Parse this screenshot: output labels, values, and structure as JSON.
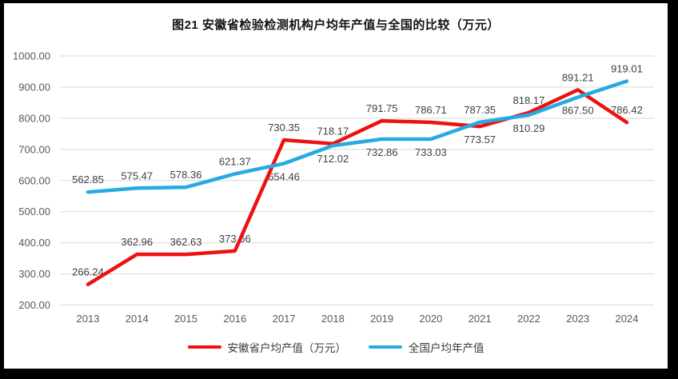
{
  "chart_data": {
    "type": "line",
    "title": "图21 安徽省检验检测机构户均年产值与全国的比较（万元）",
    "categories": [
      "2013",
      "2014",
      "2015",
      "2016",
      "2017",
      "2018",
      "2019",
      "2020",
      "2021",
      "2022",
      "2023",
      "2024"
    ],
    "series": [
      {
        "name": "安徽省户均产值（万元）",
        "color": "#ee1111",
        "values": [
          266.24,
          362.96,
          362.63,
          373.66,
          730.35,
          718.17,
          791.75,
          786.71,
          773.57,
          818.17,
          891.21,
          786.42
        ],
        "label_positions": [
          "above",
          "above",
          "above",
          "above",
          "above",
          "above",
          "above",
          "above",
          "below",
          "above",
          "above",
          "above"
        ]
      },
      {
        "name": "全国户均年产值",
        "color": "#27aae1",
        "values": [
          562.85,
          575.47,
          578.36,
          621.37,
          654.46,
          712.02,
          732.86,
          733.03,
          787.35,
          810.29,
          867.5,
          919.01
        ],
        "label_positions": [
          "above",
          "above",
          "above",
          "above",
          "below",
          "below",
          "below",
          "below",
          "above",
          "below",
          "below",
          "above"
        ]
      }
    ],
    "ylim": [
      200,
      1000
    ],
    "ytick_step": 100,
    "ytick_decimals": 2,
    "grid": true,
    "legend_position": "bottom",
    "colors": {
      "grid": "#d9d9d9",
      "axis_text": "#595959",
      "data_label_text": "#3f3f3f"
    }
  }
}
